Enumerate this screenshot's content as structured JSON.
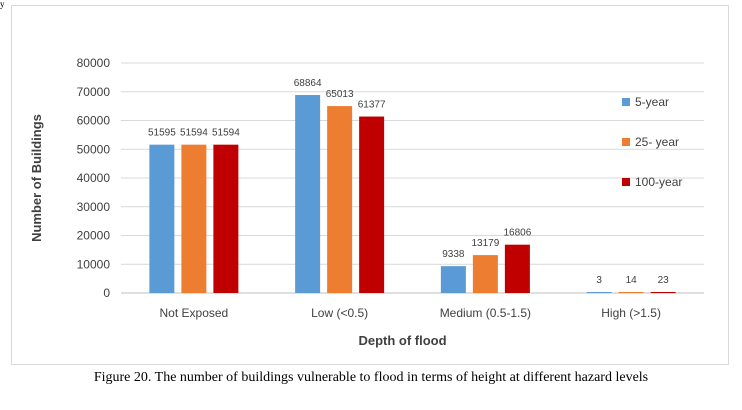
{
  "page": {
    "caption": "Figure 20. The number of buildings vulnerable to flood in terms of height at different hazard levels",
    "corner_mark": "y"
  },
  "chart_data": {
    "type": "bar",
    "xlabel": "Depth of flood",
    "ylabel": "Number of Buildings",
    "ylim": [
      0,
      80000
    ],
    "yticks": [
      0,
      10000,
      20000,
      30000,
      40000,
      50000,
      60000,
      70000,
      80000
    ],
    "grid": true,
    "legend_position": "right",
    "categories": [
      "Not Exposed",
      "Low  (<0.5)",
      "Medium (0.5-1.5)",
      "High  (>1.5)"
    ],
    "series": [
      {
        "name": "5-year",
        "color": "#5b9bd5",
        "values": [
          51595,
          68864,
          9338,
          3
        ]
      },
      {
        "name": "25- year",
        "color": "#ed7d31",
        "values": [
          51594,
          65013,
          13179,
          14
        ]
      },
      {
        "name": "100-year",
        "color": "#c00000",
        "values": [
          51594,
          61377,
          16806,
          23
        ]
      }
    ]
  }
}
